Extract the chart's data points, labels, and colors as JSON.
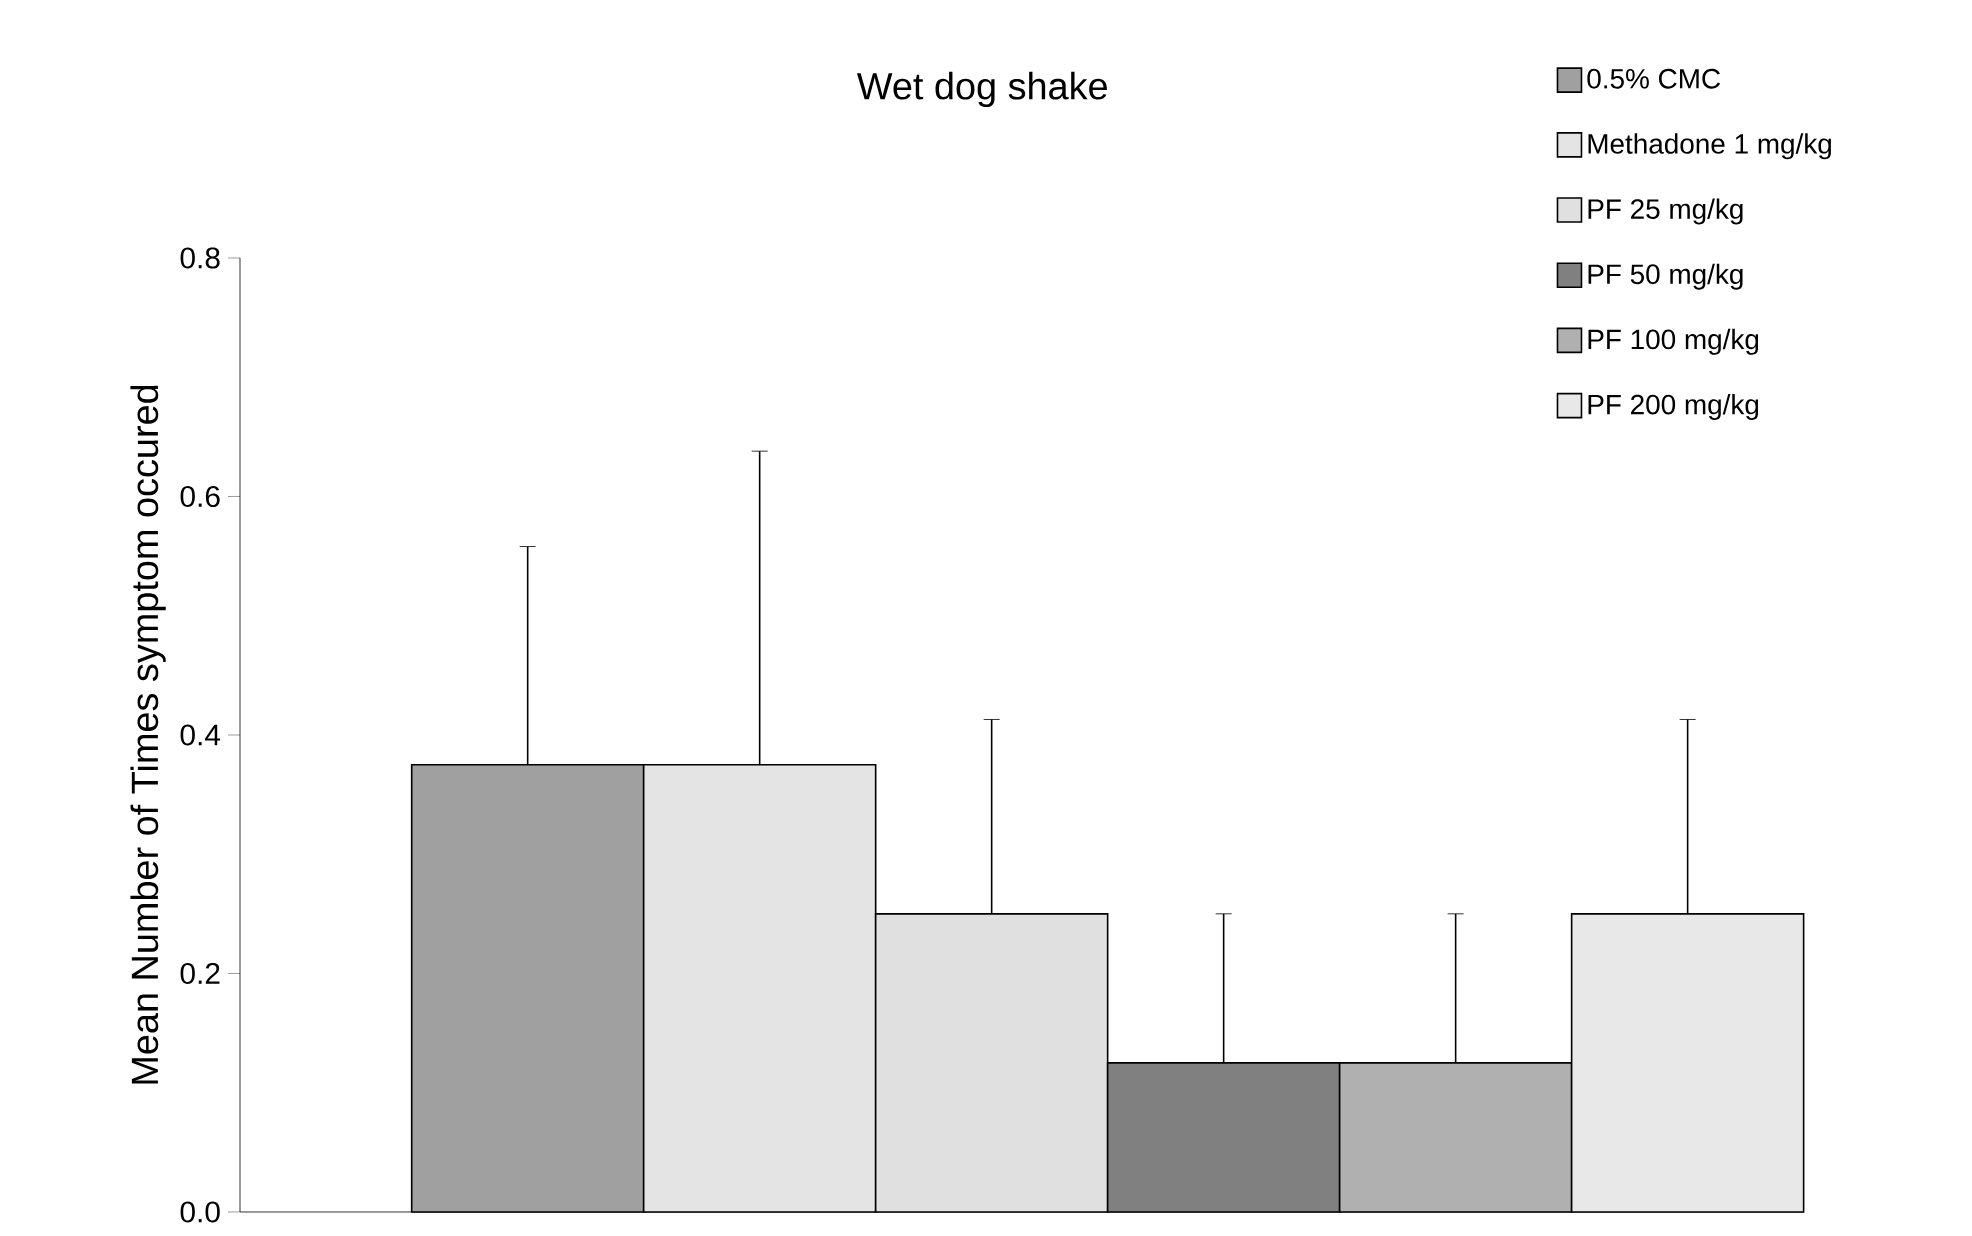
{
  "chart_data": {
    "type": "bar",
    "title": "Wet dog shake",
    "ylabel": "Mean Number of Times symptom occured",
    "categories": [
      null
    ],
    "series": [
      {
        "name": "0.5% CMC",
        "color": "#a0a0a0",
        "values": [
          0.375
        ],
        "errors": [
          [
            0.375,
            0.558
          ]
        ]
      },
      {
        "name": "Methadone 1 mg/kg",
        "color": "#e4e4e4",
        "values": [
          0.375
        ],
        "errors": [
          [
            0.375,
            0.638
          ]
        ]
      },
      {
        "name": "PF 25 mg/kg",
        "color": "#e0e0e0",
        "values": [
          0.25
        ],
        "errors": [
          [
            0.25,
            0.413
          ]
        ]
      },
      {
        "name": "PF 50 mg/kg",
        "color": "#808080",
        "values": [
          0.125
        ],
        "errors": [
          [
            0.125,
            0.25
          ]
        ]
      },
      {
        "name": "PF 100 mg/kg",
        "color": "#b0b0b0",
        "values": [
          0.125
        ],
        "errors": [
          [
            0.125,
            0.25
          ]
        ]
      },
      {
        "name": "PF 200 mg/kg",
        "color": "#e8e8e8",
        "values": [
          0.25
        ],
        "errors": [
          [
            0.25,
            0.413
          ]
        ]
      }
    ],
    "ylim": [
      0,
      0.8
    ],
    "yticks": [
      {
        "value": 0,
        "label": "0.0"
      },
      {
        "value": 0.2,
        "label": "0.2"
      },
      {
        "value": 0.4,
        "label": "0.4"
      },
      {
        "value": 0.6,
        "label": "0.6"
      },
      {
        "value": 0.8,
        "label": "0.8"
      }
    ],
    "legend": "top right"
  }
}
